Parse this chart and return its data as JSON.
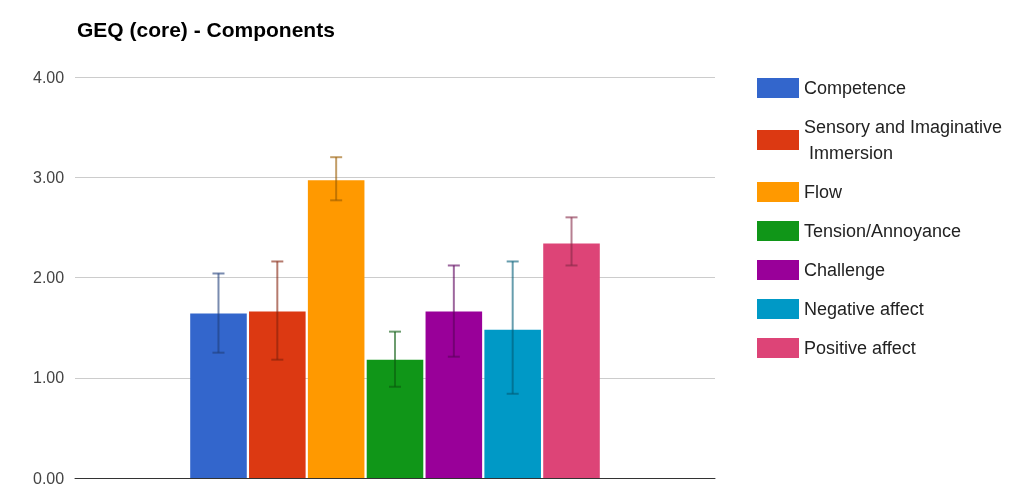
{
  "chart_data": {
    "type": "bar",
    "title": "GEQ (core) - Components",
    "categories": [
      null
    ],
    "series": [
      {
        "name": "Competence",
        "color": "#3366cc",
        "values": [
          1.64
        ],
        "errors": [
          [
            1.25,
            2.04
          ]
        ]
      },
      {
        "name": "Sensory and Imaginative Immersion",
        "color": "#dc3912",
        "values": [
          1.66
        ],
        "errors": [
          [
            1.18,
            2.16
          ]
        ]
      },
      {
        "name": "Flow",
        "color": "#ff9900",
        "values": [
          2.97
        ],
        "errors": [
          [
            2.77,
            3.2
          ]
        ]
      },
      {
        "name": "Tension/Annoyance",
        "color": "#109618",
        "values": [
          1.18
        ],
        "errors": [
          [
            0.91,
            1.46
          ]
        ]
      },
      {
        "name": "Challenge",
        "color": "#990099",
        "values": [
          1.66
        ],
        "errors": [
          [
            1.21,
            2.12
          ]
        ]
      },
      {
        "name": "Negative affect",
        "color": "#0099c6",
        "values": [
          1.48
        ],
        "errors": [
          [
            0.84,
            2.16
          ]
        ]
      },
      {
        "name": "Positive affect",
        "color": "#dd4477",
        "values": [
          2.34
        ],
        "errors": [
          [
            2.12,
            2.6
          ]
        ]
      }
    ],
    "ylim": [
      0,
      4
    ],
    "yticks": [
      {
        "value": 0,
        "label": "0.00"
      },
      {
        "value": 1,
        "label": "1.00"
      },
      {
        "value": 2,
        "label": "2.00"
      },
      {
        "value": 3,
        "label": "3.00"
      },
      {
        "value": 4,
        "label": "4.00"
      }
    ],
    "grid": "y",
    "legend": "right"
  }
}
